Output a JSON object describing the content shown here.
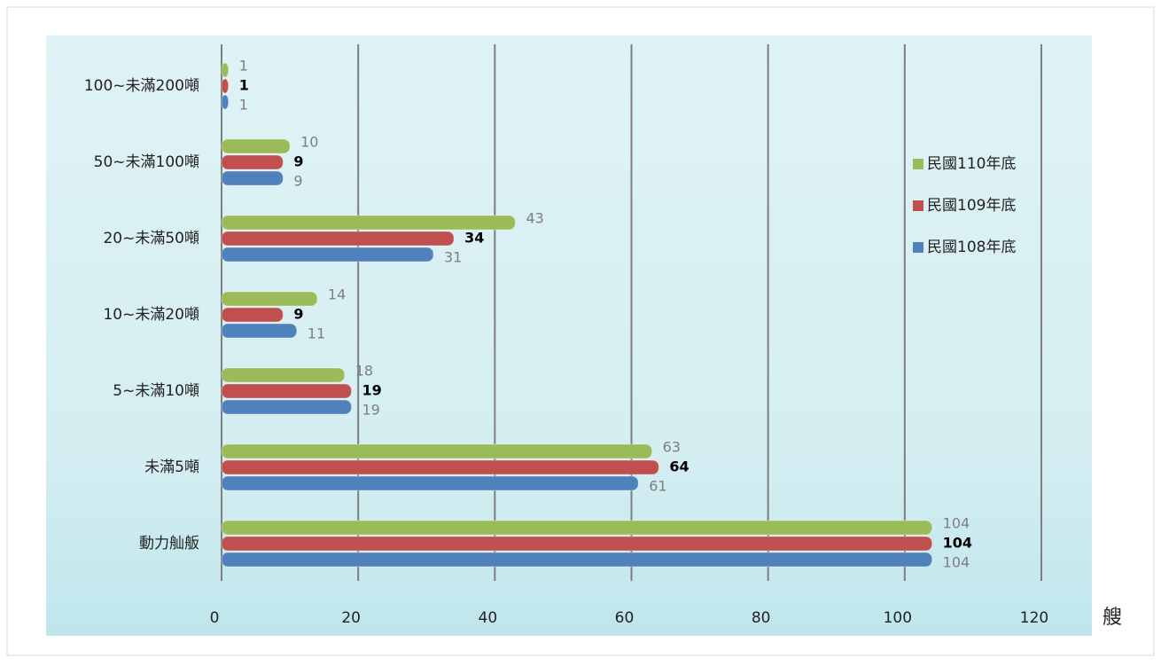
{
  "chart_data": {
    "type": "bar",
    "orientation": "horizontal",
    "categories": [
      "100~未滿200噸",
      "50~未滿100噸",
      "20~未滿50噸",
      "10~未滿20噸",
      "5~未滿10噸",
      "未滿5噸",
      "動力舢舨"
    ],
    "series": [
      {
        "name": "民國110年底",
        "color": "#9bbb59",
        "values": [
          1,
          10,
          43,
          14,
          18,
          63,
          104
        ]
      },
      {
        "name": "民國109年底",
        "color": "#c0504d",
        "values": [
          1,
          9,
          34,
          9,
          19,
          64,
          104
        ]
      },
      {
        "name": "民國108年底",
        "color": "#4f81bd",
        "values": [
          1,
          9,
          31,
          11,
          19,
          61,
          104
        ]
      }
    ],
    "xlim": [
      0,
      120
    ],
    "xticks": [
      0,
      20,
      40,
      60,
      80,
      100,
      120
    ],
    "x_axis_unit": "艘",
    "grid": true,
    "legend": "right"
  }
}
